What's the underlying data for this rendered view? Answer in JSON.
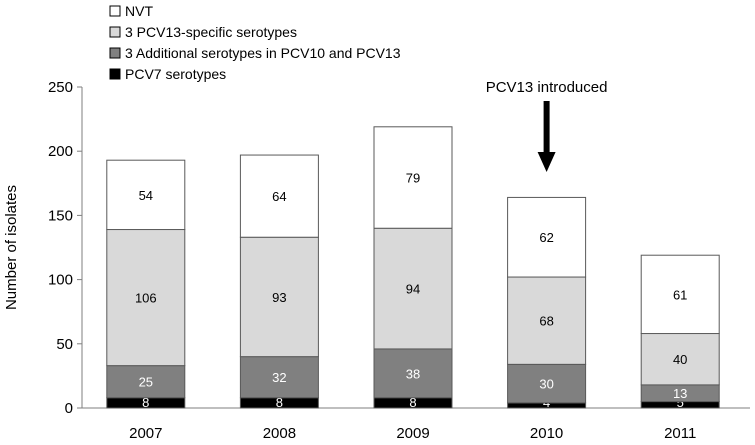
{
  "chart_data": {
    "type": "bar",
    "stacked": true,
    "categories": [
      "2007",
      "2008",
      "2009",
      "2010",
      "2011"
    ],
    "ylabel": "Number of isolates",
    "ylim": [
      0,
      250
    ],
    "yticks": [
      "0",
      "50",
      "100",
      "150",
      "200",
      "250"
    ],
    "grid": false,
    "legend_position": "top-left",
    "series": [
      {
        "name": "PCV7 serotypes",
        "color": "#000000",
        "label_color": "#ffffff",
        "values": [
          8,
          8,
          8,
          4,
          5
        ]
      },
      {
        "name": "3 Additional serotypes in PCV10 and PCV13",
        "color": "#808080",
        "label_color": "#ffffff",
        "values": [
          25,
          32,
          38,
          30,
          13
        ]
      },
      {
        "name": "3 PCV13-specific serotypes",
        "color": "#d9d9d9",
        "label_color": "#000000",
        "values": [
          106,
          93,
          94,
          68,
          40
        ]
      },
      {
        "name": "NVT",
        "color": "#ffffff",
        "label_color": "#000000",
        "values": [
          54,
          64,
          79,
          62,
          61
        ]
      }
    ],
    "annotation": {
      "text": "PCV13 introduced",
      "category": "2010"
    }
  }
}
